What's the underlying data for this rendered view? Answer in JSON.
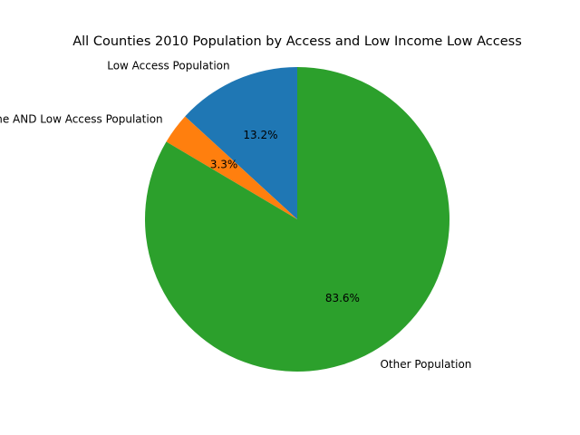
{
  "chart_data": {
    "type": "pie",
    "title": "All Counties 2010 Population by Access and Low Income Low Access",
    "labels": [
      "Low Access Population",
      "Low Income AND Low Access Population",
      "Other Population"
    ],
    "values": [
      13.2,
      3.3,
      83.6
    ],
    "value_labels": [
      "13.2%",
      "3.3%",
      "83.6%"
    ],
    "colors": [
      "#1f77b4",
      "#ff7f0e",
      "#2ca02c"
    ],
    "start_angle": 90,
    "direction": "counterclockwise"
  }
}
